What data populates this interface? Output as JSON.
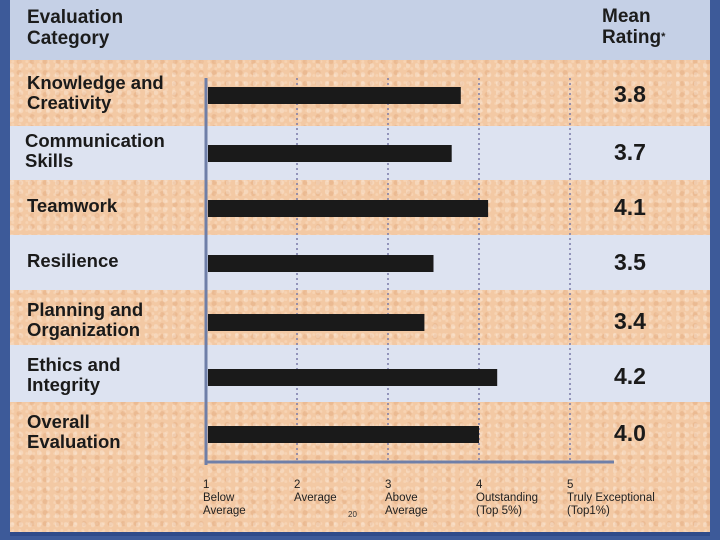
{
  "header": {
    "category": "Evaluation\nCategory",
    "rating": "Mean\nRating",
    "asterisk": "*"
  },
  "colors": {
    "frame_border": "#3d5a99",
    "header_band": "#c5d0e6",
    "alt_band": "#dde3f1",
    "bar": "#1a1a1a",
    "gridline": "#7a7aa8"
  },
  "page_number": "20",
  "chart_data": {
    "type": "bar",
    "orientation": "horizontal",
    "categories": [
      "Knowledge and\nCreativity",
      "Communication\nSkills",
      "Teamwork",
      "Resilience",
      "Planning and\nOrganization",
      "Ethics and\nIntegrity",
      "Overall\nEvaluation"
    ],
    "values": [
      3.8,
      3.7,
      4.1,
      3.5,
      3.4,
      4.2,
      4.0
    ],
    "value_labels": [
      "3.8",
      "3.7",
      "4.1",
      "3.5",
      "3.4",
      "4.2",
      "4.0"
    ],
    "xlim": [
      1,
      5.5
    ],
    "grid": "vertical dotted",
    "ticks": [
      {
        "value": 1,
        "number": "1",
        "label": "Below\nAverage"
      },
      {
        "value": 2,
        "number": "2",
        "label": "Average"
      },
      {
        "value": 3,
        "number": "3",
        "label": "Above\nAverage"
      },
      {
        "value": 4,
        "number": "4",
        "label": "Outstanding\n(Top 5%)"
      },
      {
        "value": 5,
        "number": "5",
        "label": "Truly Exceptional\n(Top1%)"
      }
    ]
  }
}
